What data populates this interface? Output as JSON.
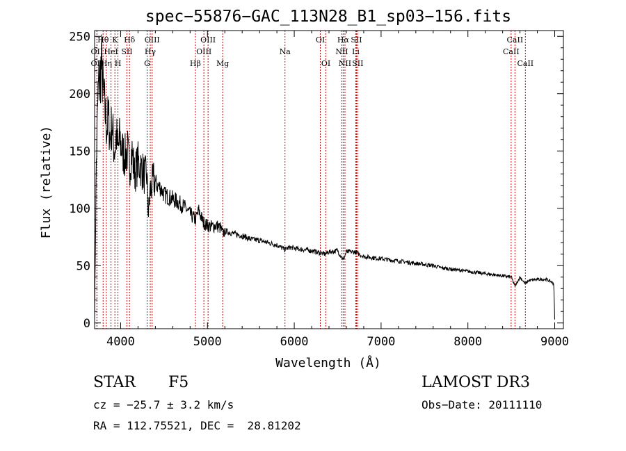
{
  "chart_data": {
    "type": "line",
    "title": "spec−55876−GAC_113N28_B1_sp03−156.fits",
    "xlabel": "Wavelength (Å)",
    "ylabel": "Flux (relative)",
    "xlim": [
      3700,
      9100
    ],
    "ylim": [
      -5,
      255
    ],
    "xticks": [
      4000,
      5000,
      6000,
      7000,
      8000,
      9000
    ],
    "yticks": [
      0,
      50,
      100,
      150,
      200,
      250
    ],
    "grid": false,
    "series": [
      {
        "name": "spectrum",
        "x": [
          3700,
          3720,
          3740,
          3760,
          3780,
          3800,
          3820,
          3840,
          3860,
          3880,
          3900,
          3920,
          3933,
          3950,
          3968,
          3990,
          4020,
          4050,
          4080,
          4101,
          4130,
          4160,
          4200,
          4240,
          4280,
          4300,
          4320,
          4340,
          4380,
          4420,
          4460,
          4500,
          4550,
          4600,
          4650,
          4700,
          4750,
          4800,
          4861,
          4900,
          4950,
          5000,
          5050,
          5100,
          5150,
          5175,
          5200,
          5300,
          5400,
          5500,
          5600,
          5700,
          5800,
          5890,
          5950,
          6000,
          6100,
          6200,
          6300,
          6350,
          6400,
          6500,
          6563,
          6600,
          6700,
          6800,
          6900,
          7000,
          7200,
          7400,
          7600,
          7700,
          7800,
          8000,
          8200,
          8400,
          8500,
          8542,
          8600,
          8662,
          8700,
          8800,
          8900,
          8960,
          8990,
          9000
        ],
        "values": [
          5,
          140,
          200,
          215,
          225,
          200,
          185,
          170,
          180,
          160,
          175,
          155,
          150,
          165,
          150,
          160,
          150,
          145,
          150,
          135,
          150,
          130,
          140,
          135,
          128,
          130,
          95,
          115,
          125,
          120,
          118,
          112,
          110,
          108,
          106,
          103,
          100,
          95,
          90,
          98,
          88,
          85,
          84,
          85,
          83,
          78,
          80,
          78,
          76,
          73,
          72,
          70,
          68,
          64,
          66,
          65,
          64,
          63,
          61,
          60,
          62,
          63,
          55,
          62,
          62,
          58,
          57,
          56,
          54,
          52,
          50,
          48,
          47,
          45,
          43,
          41,
          40,
          32,
          40,
          34,
          37,
          38,
          38,
          36,
          34,
          3
        ]
      }
    ],
    "line_markers": [
      {
        "label": "Hθ",
        "x": 3798,
        "row": 1
      },
      {
        "label": "K",
        "x": 3934,
        "row": 1
      },
      {
        "label": "Hδ",
        "x": 4102,
        "row": 1
      },
      {
        "label": "OIII",
        "x": 4363,
        "row": 1
      },
      {
        "label": "OIII",
        "x": 5007,
        "row": 1
      },
      {
        "label": "OI",
        "x": 6300,
        "row": 1
      },
      {
        "label": "Hα",
        "x": 6563,
        "row": 1
      },
      {
        "label": "SII",
        "x": 6716,
        "row": 1
      },
      {
        "label": "CaII",
        "x": 8542,
        "row": 1
      },
      {
        "label": "OII",
        "x": 3727,
        "row": 2
      },
      {
        "label": "HeI",
        "x": 3889,
        "row": 2
      },
      {
        "label": "SII",
        "x": 4072,
        "row": 2
      },
      {
        "label": "Hγ",
        "x": 4341,
        "row": 2
      },
      {
        "label": "OIII",
        "x": 4959,
        "row": 2
      },
      {
        "label": "Na",
        "x": 5893,
        "row": 2
      },
      {
        "label": "NII",
        "x": 6548,
        "row": 2
      },
      {
        "label": "Li",
        "x": 6708,
        "row": 2
      },
      {
        "label": "CaII",
        "x": 8498,
        "row": 2
      },
      {
        "label": "OII",
        "x": 3727,
        "row": 3
      },
      {
        "label": "Hη",
        "x": 3835,
        "row": 3
      },
      {
        "label": "H",
        "x": 3969,
        "row": 3
      },
      {
        "label": "G",
        "x": 4305,
        "row": 3
      },
      {
        "label": "Hβ",
        "x": 4861,
        "row": 3
      },
      {
        "label": "Mg",
        "x": 5175,
        "row": 3
      },
      {
        "label": "OI",
        "x": 6364,
        "row": 3
      },
      {
        "label": "NII",
        "x": 6584,
        "row": 3
      },
      {
        "label": "SII",
        "x": 6731,
        "row": 3
      },
      {
        "label": "CaII",
        "x": 8662,
        "row": 3
      }
    ]
  },
  "info": {
    "object_class": "STAR",
    "subclass": "F5",
    "redshift": "cz = −25.7 ± 3.2 km/s",
    "coords": "RA = 112.75521, DEC =  28.81202",
    "survey": "LAMOST DR3",
    "obs_date": "Obs−Date: 20111110"
  },
  "colors": {
    "spectrum": "#000000",
    "marker_line": "#cc0000",
    "axis": "#000000"
  }
}
